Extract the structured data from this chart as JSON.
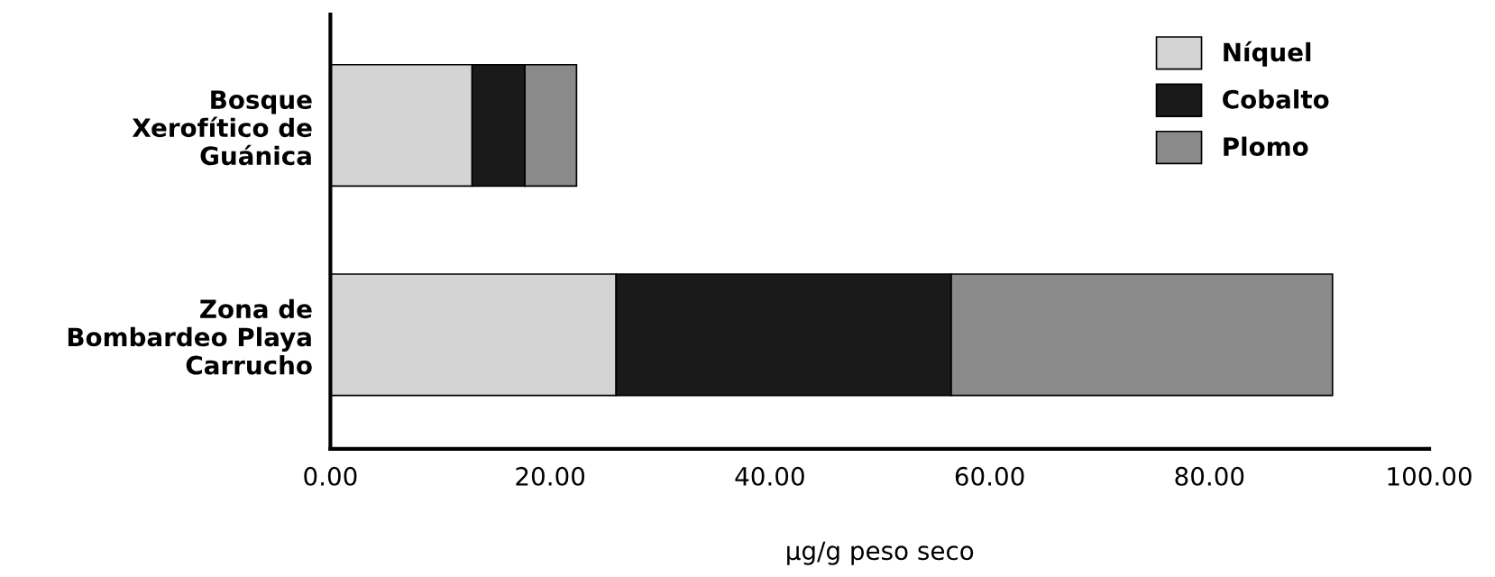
{
  "chart_data": {
    "type": "bar",
    "orientation": "horizontal",
    "stacked": true,
    "categories": [
      "Bosque\nXerofítico de\nGuánica",
      "Zona de\nBombardeo Playa\nCarrucho"
    ],
    "series": [
      {
        "name": "Níquel",
        "color": "#d4d4d4",
        "values": [
          12.9,
          26.0
        ]
      },
      {
        "name": "Cobalto",
        "color": "#1a1a1a",
        "values": [
          4.8,
          30.5
        ]
      },
      {
        "name": "Plomo",
        "color": "#8a8a8a",
        "values": [
          4.7,
          34.7
        ]
      }
    ],
    "xlabel": "μg/g peso seco",
    "xlim": [
      0,
      100
    ],
    "xticks": [
      {
        "value": 0,
        "label": "0.00"
      },
      {
        "value": 20,
        "label": "20.00"
      },
      {
        "value": 40,
        "label": "40.00"
      },
      {
        "value": 60,
        "label": "60.00"
      },
      {
        "value": 80,
        "label": "80.00"
      },
      {
        "value": 100,
        "label": "100.00"
      }
    ],
    "legend": "top right",
    "grid": false
  }
}
